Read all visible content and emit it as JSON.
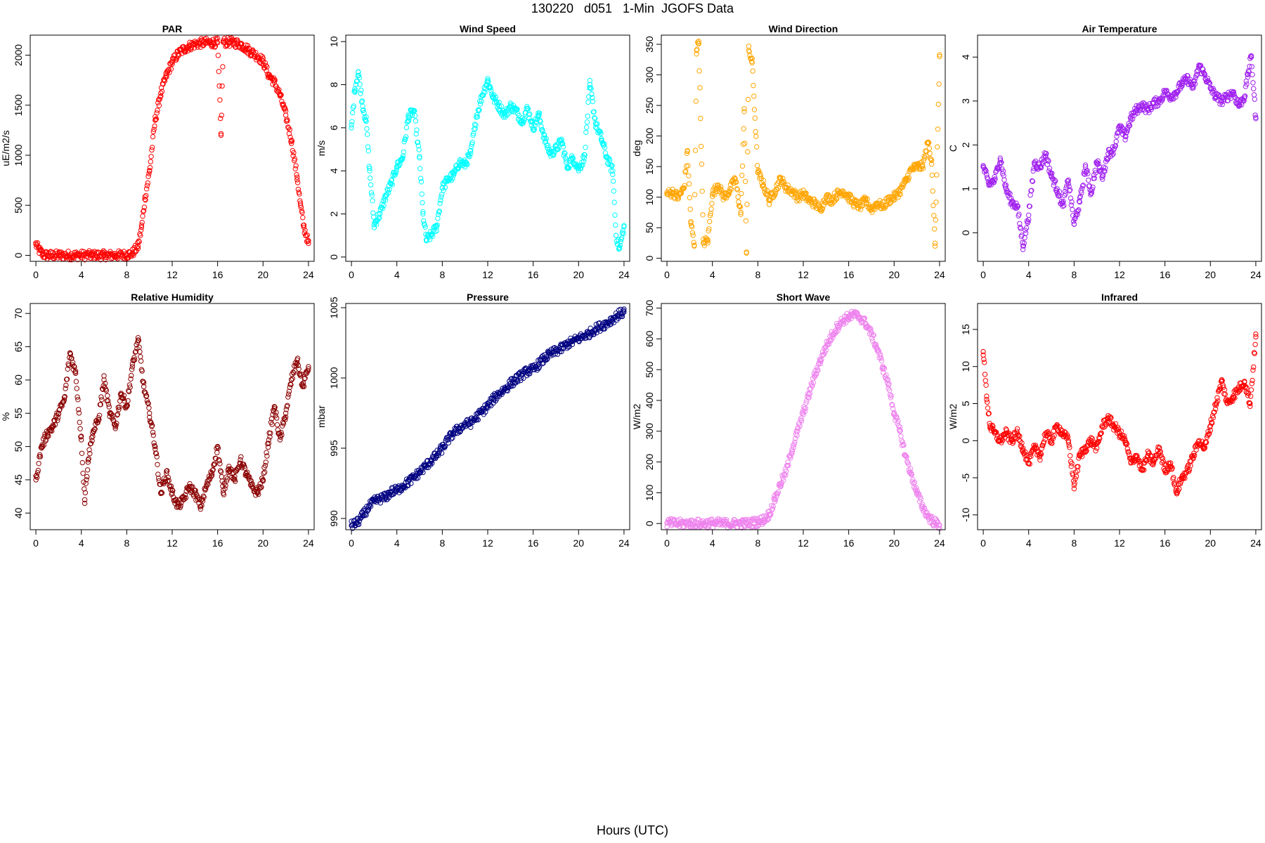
{
  "figure": {
    "title": "130220   d051   1-Min  JGOFS Data",
    "xlabel": "Hours (UTC)"
  },
  "chart_data": [
    {
      "type": "scatter",
      "title": "PAR",
      "ylabel": "uE/m2/s",
      "color": "#ff0000",
      "xlim": [
        -0.5,
        24.5
      ],
      "ylim": [
        -60,
        2200
      ],
      "xticks": [
        0,
        4,
        8,
        12,
        16,
        20,
        24
      ],
      "yticks": [
        0,
        500,
        1000,
        1500,
        2000
      ],
      "series": [
        {
          "x": [
            0,
            0.3,
            0.6,
            1,
            2,
            3,
            4,
            5,
            6,
            7,
            8,
            8.5,
            9,
            9.3,
            9.6,
            10,
            10.5,
            11,
            11.5,
            12,
            12.5,
            13,
            13.5,
            14,
            14.5,
            15,
            15.5,
            16,
            16.3,
            16.5,
            17,
            17.5,
            18,
            18.5,
            19,
            19.5,
            20,
            20.5,
            21,
            21.5,
            22,
            22.5,
            23,
            23.3,
            23.6,
            24
          ],
          "y": [
            110,
            50,
            10,
            0,
            0,
            0,
            0,
            0,
            0,
            0,
            5,
            20,
            90,
            280,
            560,
            840,
            1350,
            1620,
            1800,
            1930,
            2010,
            2060,
            2090,
            2110,
            2120,
            2125,
            2125,
            2125,
            1200,
            2130,
            2130,
            2125,
            2110,
            2070,
            2030,
            1990,
            1940,
            1800,
            1730,
            1600,
            1400,
            1150,
            780,
            500,
            280,
            120
          ]
        }
      ]
    },
    {
      "type": "scatter",
      "title": "Wind Speed",
      "ylabel": "m/s",
      "color": "#00ffff",
      "xlim": [
        -0.5,
        24.5
      ],
      "ylim": [
        -0.2,
        10.3
      ],
      "xticks": [
        0,
        4,
        8,
        12,
        16,
        20,
        24
      ],
      "yticks": [
        0,
        2,
        4,
        6,
        8,
        10
      ],
      "series": [
        {
          "x": [
            0,
            0.3,
            0.6,
            1,
            1.3,
            1.6,
            2,
            2.5,
            3,
            3.5,
            4,
            4.5,
            5,
            5.5,
            6,
            6.3,
            6.6,
            7,
            7.5,
            8,
            8.5,
            9,
            9.5,
            10,
            10.5,
            11,
            11.5,
            12,
            12.5,
            13,
            13.5,
            14,
            14.5,
            15,
            15.5,
            16,
            16.5,
            17,
            17.5,
            18,
            18.5,
            19,
            19.5,
            20,
            20.5,
            21,
            21.5,
            22,
            22.5,
            23,
            23.3,
            23.6,
            24
          ],
          "y": [
            6.0,
            7.8,
            8.6,
            7.0,
            6.3,
            4.0,
            1.5,
            2.0,
            2.8,
            3.4,
            4.2,
            4.6,
            6.5,
            6.8,
            4.6,
            2.0,
            0.8,
            1.0,
            1.4,
            3.2,
            3.6,
            3.8,
            4.4,
            4.3,
            4.8,
            6.5,
            7.5,
            8.2,
            7.4,
            7.0,
            6.6,
            7.0,
            6.8,
            6.3,
            6.9,
            6.0,
            6.6,
            5.5,
            4.8,
            5.0,
            5.4,
            4.2,
            4.6,
            4.1,
            4.6,
            8.0,
            6.2,
            5.5,
            4.6,
            4.0,
            1.0,
            0.4,
            1.4
          ]
        }
      ]
    },
    {
      "type": "scatter",
      "title": "Wind Direction",
      "ylabel": "deg",
      "color": "#ffa500",
      "xlim": [
        -0.5,
        24.5
      ],
      "ylim": [
        -5,
        365
      ],
      "xticks": [
        0,
        4,
        8,
        12,
        16,
        20,
        24
      ],
      "yticks": [
        0,
        50,
        100,
        150,
        200,
        250,
        300,
        350
      ],
      "series": [
        {
          "x": [
            0,
            0.5,
            1,
            1.5,
            1.8,
            2.1,
            2.4,
            2.6,
            2.8,
            3.2,
            3.6,
            4,
            4.5,
            5,
            5.5,
            6,
            6.5,
            6.8,
            7,
            7.2,
            7.5,
            8,
            8.5,
            9,
            9.5,
            10,
            10.5,
            11,
            11.5,
            12,
            12.5,
            13,
            13.5,
            14,
            14.5,
            15,
            15.5,
            16,
            16.5,
            17,
            17.5,
            18,
            18.5,
            19,
            19.5,
            20,
            20.5,
            21,
            21.5,
            22,
            22.5,
            23,
            23.3,
            23.6,
            24
          ],
          "y": [
            105,
            108,
            100,
            115,
            175,
            60,
            20,
            340,
            355,
            25,
            30,
            105,
            120,
            100,
            110,
            130,
            75,
            240,
            10,
            340,
            320,
            140,
            120,
            95,
            110,
            130,
            115,
            110,
            100,
            105,
            95,
            90,
            80,
            100,
            95,
            105,
            110,
            100,
            90,
            85,
            95,
            80,
            90,
            85,
            95,
            100,
            110,
            125,
            145,
            150,
            150,
            190,
            160,
            20,
            330
          ]
        }
      ]
    },
    {
      "type": "scatter",
      "title": "Air Temperature",
      "ylabel": "C",
      "color": "#a020f0",
      "xlim": [
        -0.5,
        24.5
      ],
      "ylim": [
        -0.65,
        4.5
      ],
      "xticks": [
        0,
        4,
        8,
        12,
        16,
        20,
        24
      ],
      "yticks": [
        0,
        1,
        2,
        3,
        4
      ],
      "series": [
        {
          "x": [
            0,
            0.5,
            1,
            1.5,
            2,
            2.5,
            3,
            3.5,
            4,
            4.5,
            5,
            5.5,
            6,
            6.5,
            7,
            7.5,
            8,
            8.5,
            9,
            9.5,
            10,
            10.5,
            11,
            11.5,
            12,
            12.5,
            13,
            13.5,
            14,
            14.5,
            15,
            15.5,
            16,
            16.5,
            17,
            17.5,
            18,
            18.5,
            19,
            19.5,
            20,
            20.5,
            21,
            21.5,
            22,
            22.5,
            23,
            23.3,
            23.6,
            24
          ],
          "y": [
            1.5,
            1.1,
            1.2,
            1.7,
            1.0,
            0.7,
            0.6,
            -0.3,
            0.4,
            1.6,
            1.5,
            1.8,
            1.3,
            1.0,
            0.6,
            1.2,
            0.2,
            0.7,
            1.5,
            0.9,
            1.6,
            1.3,
            1.8,
            1.9,
            2.4,
            2.2,
            2.6,
            2.8,
            2.9,
            2.8,
            2.95,
            3.0,
            3.2,
            3.1,
            3.2,
            3.4,
            3.5,
            3.3,
            3.8,
            3.6,
            3.3,
            3.1,
            3.0,
            3.1,
            3.2,
            2.9,
            3.1,
            3.6,
            4.0,
            2.6
          ]
        }
      ]
    },
    {
      "type": "scatter",
      "title": "Relative Humidity",
      "ylabel": "%",
      "color": "#8b0000",
      "xlim": [
        -0.5,
        24.5
      ],
      "ylim": [
        37.5,
        71.5
      ],
      "xticks": [
        0,
        4,
        8,
        12,
        16,
        20,
        24
      ],
      "yticks": [
        40,
        45,
        50,
        55,
        60,
        65,
        70
      ],
      "series": [
        {
          "x": [
            0,
            0.5,
            1,
            1.5,
            2,
            2.5,
            3,
            3.5,
            4,
            4.3,
            4.6,
            5,
            5.5,
            6,
            6.5,
            7,
            7.5,
            8,
            8.5,
            9,
            9.5,
            10,
            10.5,
            11,
            11.5,
            12,
            12.5,
            13,
            13.5,
            14,
            14.5,
            15,
            15.5,
            16,
            16.5,
            17,
            17.5,
            18,
            18.5,
            19,
            19.5,
            20,
            20.5,
            21,
            21.5,
            22,
            22.5,
            23,
            23.5,
            24
          ],
          "y": [
            45,
            50,
            52,
            53,
            55,
            57,
            64,
            61,
            51,
            42,
            48,
            52,
            54,
            60,
            55,
            53,
            58,
            56,
            62,
            66,
            59,
            55,
            50,
            43,
            46,
            43,
            41,
            42,
            44,
            43,
            41,
            44,
            46,
            50,
            43,
            47,
            45,
            48,
            46,
            44,
            43,
            45,
            51,
            56,
            51,
            55,
            60,
            63,
            59,
            62
          ]
        }
      ]
    },
    {
      "type": "scatter",
      "title": "Pressure",
      "ylabel": "mbar",
      "color": "#000080",
      "xlim": [
        -0.5,
        24.5
      ],
      "ylim": [
        989.2,
        1005.3
      ],
      "xticks": [
        0,
        4,
        8,
        12,
        16,
        20,
        24
      ],
      "yticks": [
        990,
        995,
        1000,
        1005
      ],
      "series": [
        {
          "x": [
            0,
            0.5,
            1,
            1.5,
            2,
            2.5,
            3,
            3.5,
            4,
            4.5,
            5,
            5.5,
            6,
            6.5,
            7,
            7.5,
            8,
            8.5,
            9,
            9.5,
            10,
            10.5,
            11,
            11.5,
            12,
            12.5,
            13,
            13.5,
            14,
            14.5,
            15,
            15.5,
            16,
            16.5,
            17,
            17.5,
            18,
            18.5,
            19,
            19.5,
            20,
            20.5,
            21,
            21.5,
            22,
            22.5,
            23,
            23.5,
            24
          ],
          "y": [
            989.5,
            989.7,
            990.2,
            990.8,
            991.2,
            991.4,
            991.5,
            991.9,
            992.0,
            992.3,
            992.6,
            992.9,
            993.3,
            993.7,
            994.1,
            994.5,
            995.0,
            995.6,
            996.1,
            996.4,
            996.7,
            996.8,
            997.2,
            997.6,
            998.0,
            998.5,
            998.9,
            999.2,
            999.6,
            999.9,
            1000.2,
            1000.5,
            1000.6,
            1001.0,
            1001.4,
            1001.7,
            1001.9,
            1002.1,
            1002.4,
            1002.6,
            1002.8,
            1003.0,
            1003.2,
            1003.5,
            1003.7,
            1003.9,
            1004.2,
            1004.5,
            1004.7
          ]
        }
      ]
    },
    {
      "type": "scatter",
      "title": "Short Wave",
      "ylabel": "W/m2",
      "color": "#ee82ee",
      "xlim": [
        -0.5,
        24.5
      ],
      "ylim": [
        -20,
        715
      ],
      "xticks": [
        0,
        4,
        8,
        12,
        16,
        20,
        24
      ],
      "yticks": [
        0,
        100,
        200,
        300,
        400,
        500,
        600,
        700
      ],
      "series": [
        {
          "x": [
            0,
            1,
            2,
            3,
            4,
            5,
            6,
            7,
            8,
            8.5,
            9,
            9.5,
            10,
            10.5,
            11,
            11.5,
            12,
            12.5,
            13,
            13.5,
            14,
            14.5,
            15,
            15.5,
            16,
            16.5,
            17,
            17.5,
            18,
            18.5,
            19,
            19.5,
            20,
            20.5,
            21,
            21.5,
            22,
            22.5,
            23,
            23.5,
            24
          ],
          "y": [
            2,
            0,
            0,
            0,
            1,
            0,
            0,
            0,
            5,
            12,
            30,
            80,
            130,
            170,
            240,
            300,
            360,
            420,
            480,
            530,
            575,
            610,
            640,
            660,
            672,
            678,
            670,
            650,
            615,
            570,
            510,
            450,
            360,
            300,
            220,
            160,
            100,
            55,
            22,
            5,
            -5
          ]
        }
      ]
    },
    {
      "type": "scatter",
      "title": "Infrared",
      "ylabel": "W/m2",
      "color": "#ff0000",
      "xlim": [
        -0.5,
        24.5
      ],
      "ylim": [
        -12,
        18.5
      ],
      "xticks": [
        0,
        4,
        8,
        12,
        16,
        20,
        24
      ],
      "yticks": [
        -10,
        -5,
        0,
        5,
        10,
        15
      ],
      "series": [
        {
          "x": [
            0,
            0.3,
            0.6,
            1,
            1.5,
            2,
            2.5,
            3,
            3.5,
            4,
            4.5,
            5,
            5.5,
            6,
            6.5,
            7,
            7.5,
            8,
            8.5,
            9,
            9.5,
            10,
            10.5,
            11,
            11.5,
            12,
            12.5,
            13,
            13.5,
            14,
            14.5,
            15,
            15.5,
            16,
            16.5,
            17,
            17.5,
            18,
            18.5,
            19,
            19.5,
            20,
            20.5,
            21,
            21.5,
            22,
            22.5,
            23,
            23.5,
            24
          ],
          "y": [
            12,
            6,
            2,
            1,
            0,
            1,
            0,
            1,
            -1,
            -3,
            -1,
            -2,
            1,
            0,
            2,
            1,
            0,
            -6,
            -2,
            -1,
            0,
            -1,
            2,
            3,
            2,
            1,
            0,
            -3,
            -2,
            -4,
            -2,
            -3,
            -1,
            -4,
            -3,
            -7,
            -5,
            -4,
            -2,
            0,
            -1,
            2,
            5,
            8,
            5,
            6,
            7,
            8,
            5,
            14
          ]
        }
      ]
    }
  ]
}
